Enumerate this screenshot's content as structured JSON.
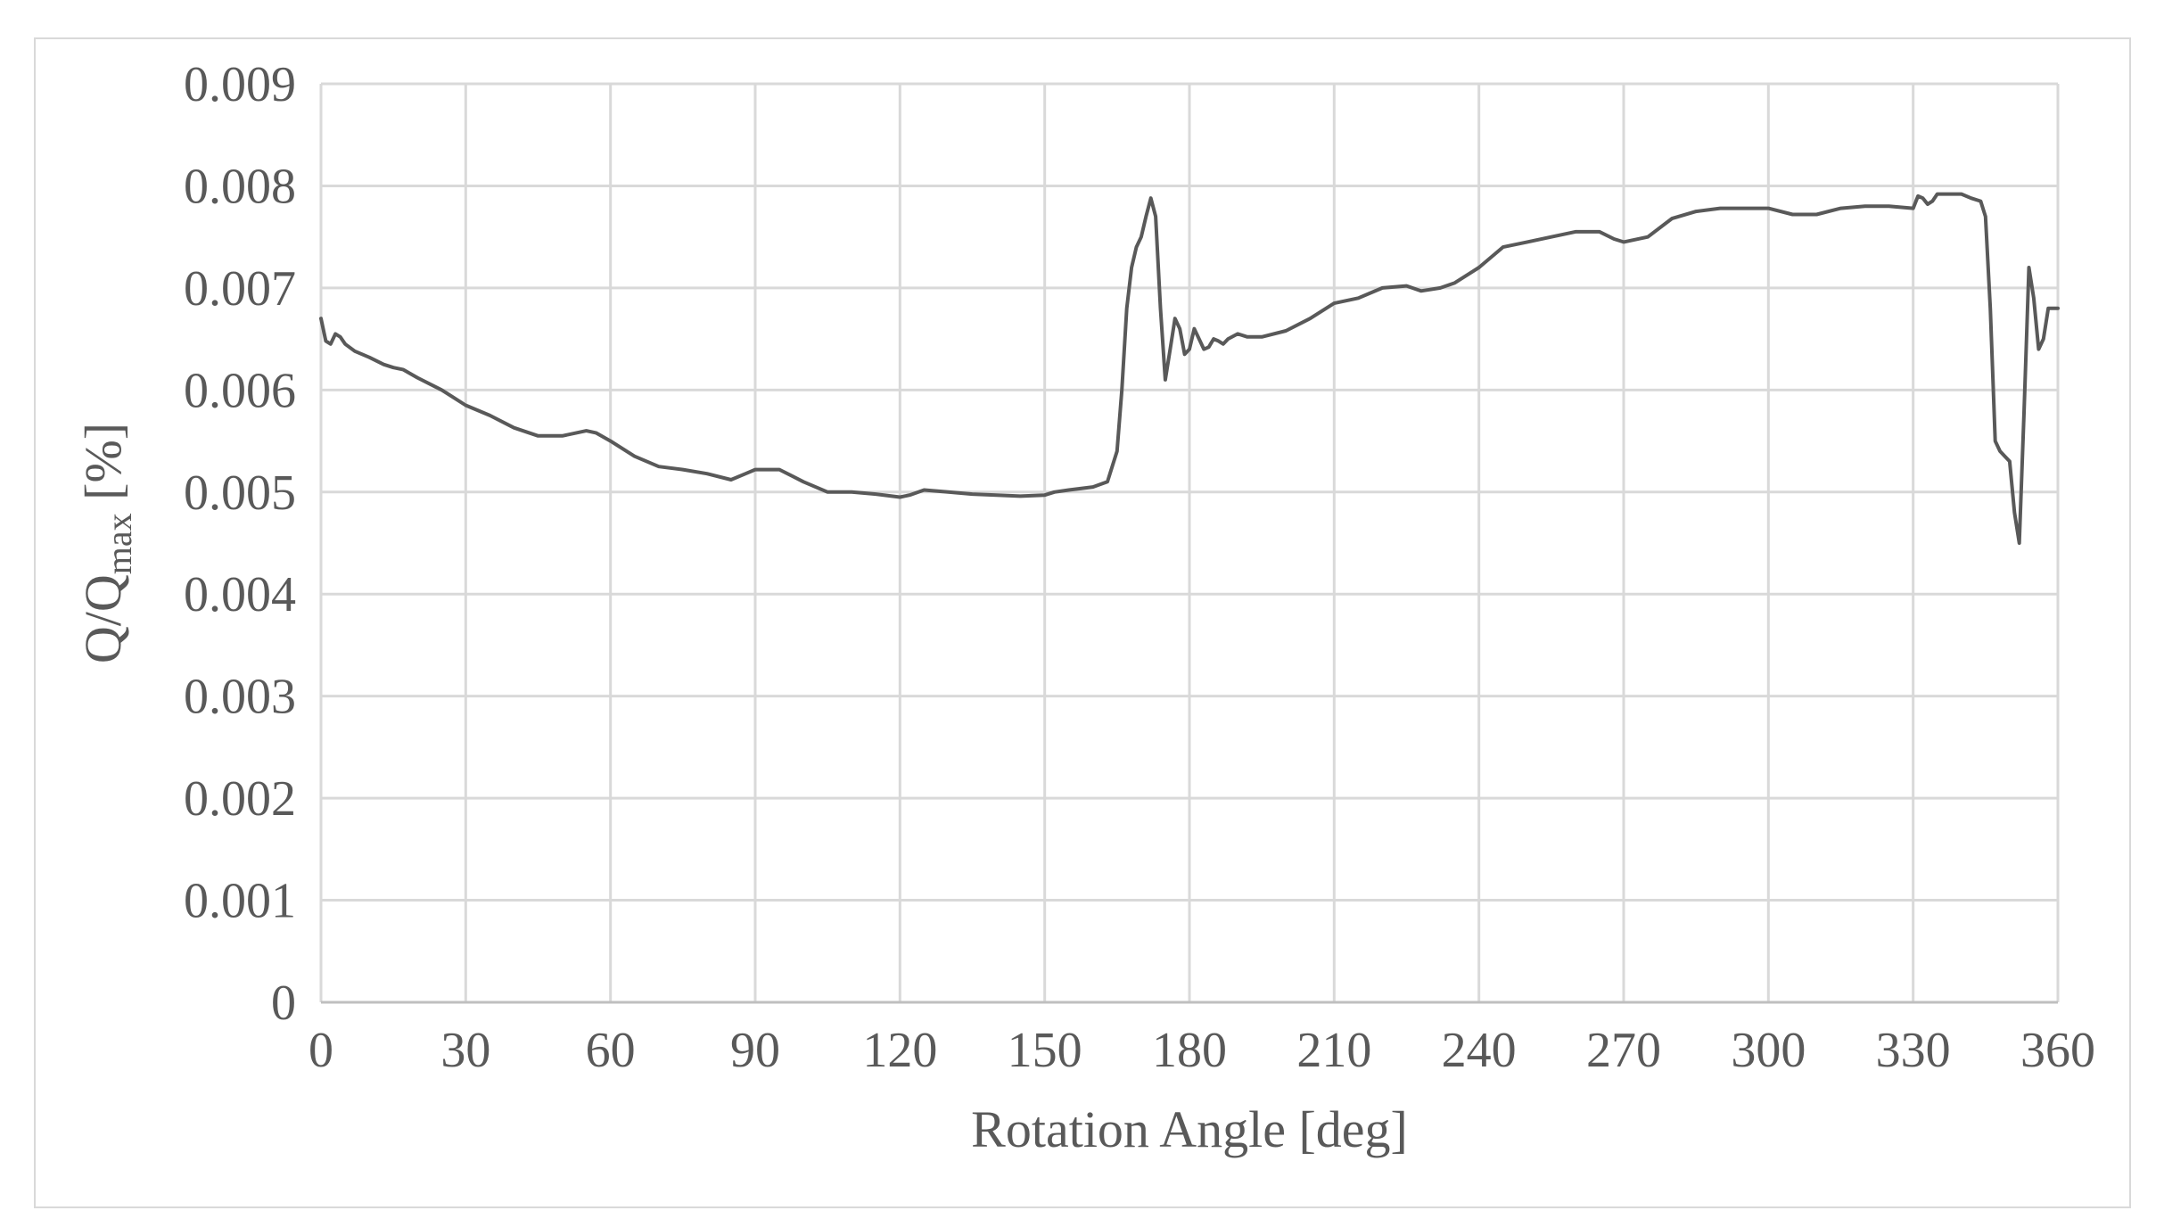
{
  "chart_data": {
    "type": "line",
    "title": "",
    "xlabel": "Rotation Angle [deg]",
    "ylabel_main": "Q/Q",
    "ylabel_sub": "max",
    "ylabel_unit": " [%]",
    "xlim": [
      0,
      360
    ],
    "ylim": [
      0,
      0.009
    ],
    "grid": true,
    "legend": "none",
    "x_ticks": [
      "0",
      "30",
      "60",
      "90",
      "120",
      "150",
      "180",
      "210",
      "240",
      "270",
      "300",
      "330",
      "360"
    ],
    "y_ticks": [
      "0",
      "0.001",
      "0.002",
      "0.003",
      "0.004",
      "0.005",
      "0.006",
      "0.007",
      "0.008",
      "0.009"
    ],
    "line_color": "#595959",
    "grid_color": "#d9d9d9",
    "series": [
      {
        "x": [
          0,
          1,
          2,
          3,
          4,
          5,
          7,
          10,
          13,
          15,
          17,
          20,
          25,
          30,
          35,
          40,
          45,
          50,
          55,
          57,
          60,
          65,
          70,
          75,
          80,
          85,
          88,
          90,
          95,
          100,
          105,
          110,
          115,
          120,
          122,
          125,
          130,
          135,
          140,
          145,
          150,
          152,
          155,
          160,
          163,
          165,
          166,
          167,
          168,
          169,
          170,
          171,
          172,
          173,
          174,
          175,
          176,
          177,
          178,
          179,
          180,
          181,
          182,
          183,
          184,
          185,
          186,
          187,
          188,
          190,
          192,
          195,
          200,
          205,
          210,
          215,
          220,
          225,
          228,
          232,
          235,
          240,
          245,
          250,
          255,
          260,
          265,
          268,
          270,
          275,
          280,
          285,
          290,
          295,
          300,
          305,
          310,
          315,
          320,
          325,
          330,
          331,
          332,
          333,
          334,
          335,
          336,
          338,
          340,
          342,
          344,
          345,
          346,
          347,
          348,
          349,
          350,
          351,
          352,
          353,
          354,
          355,
          356,
          357,
          358,
          359,
          360
        ],
        "y": [
          0.0067,
          0.00648,
          0.00645,
          0.00655,
          0.00652,
          0.00645,
          0.00638,
          0.00632,
          0.00625,
          0.00622,
          0.0062,
          0.00612,
          0.006,
          0.00585,
          0.00575,
          0.00563,
          0.00555,
          0.00555,
          0.0056,
          0.00558,
          0.0055,
          0.00535,
          0.00525,
          0.00522,
          0.00518,
          0.00512,
          0.00518,
          0.00522,
          0.00522,
          0.0051,
          0.005,
          0.005,
          0.00498,
          0.00495,
          0.00497,
          0.00502,
          0.005,
          0.00498,
          0.00497,
          0.00496,
          0.00497,
          0.005,
          0.00502,
          0.00505,
          0.0051,
          0.0054,
          0.006,
          0.0068,
          0.0072,
          0.0074,
          0.0075,
          0.0077,
          0.00788,
          0.0077,
          0.0068,
          0.0061,
          0.0064,
          0.0067,
          0.0066,
          0.00635,
          0.0064,
          0.0066,
          0.0065,
          0.0064,
          0.00642,
          0.0065,
          0.00648,
          0.00645,
          0.0065,
          0.00655,
          0.00652,
          0.00652,
          0.00658,
          0.0067,
          0.00685,
          0.0069,
          0.007,
          0.00702,
          0.00697,
          0.007,
          0.00705,
          0.0072,
          0.0074,
          0.00745,
          0.0075,
          0.00755,
          0.00755,
          0.00748,
          0.00745,
          0.0075,
          0.00768,
          0.00775,
          0.00778,
          0.00778,
          0.00778,
          0.00772,
          0.00772,
          0.00778,
          0.0078,
          0.0078,
          0.00778,
          0.0079,
          0.00788,
          0.00782,
          0.00785,
          0.00792,
          0.00792,
          0.00792,
          0.00792,
          0.00788,
          0.00785,
          0.0077,
          0.0068,
          0.0055,
          0.0054,
          0.00535,
          0.0053,
          0.0048,
          0.0045,
          0.0058,
          0.0072,
          0.0069,
          0.0064,
          0.0065,
          0.0068,
          0.0068,
          0.0068
        ]
      }
    ]
  }
}
